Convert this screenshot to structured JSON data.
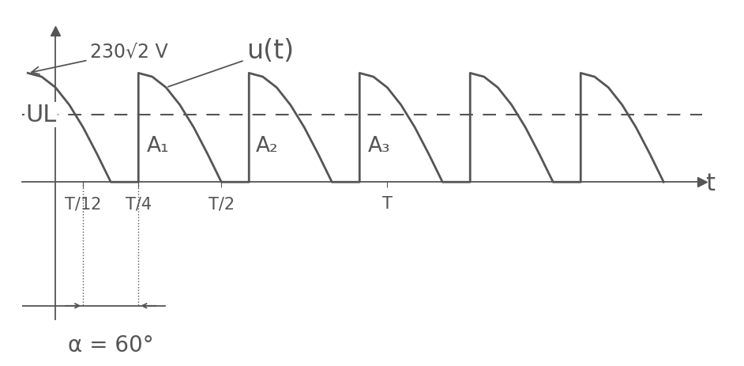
{
  "chart_data": {
    "type": "line",
    "x": [
      -0.0833,
      -0.0417,
      0,
      0.0417,
      0.0833,
      0.125,
      0.1667,
      0.25,
      0.25,
      0.2917,
      0.3333,
      0.375,
      0.4167,
      0.4583,
      0.5,
      0.5833,
      0.5833,
      0.625,
      0.6667,
      0.7083,
      0.75,
      0.7917,
      0.8333,
      0.9167,
      0.9167,
      0.9583,
      1.0,
      1.0417,
      1.0833,
      1.125,
      1.1667,
      1.25,
      1.25,
      1.2917,
      1.3333,
      1.375,
      1.4167,
      1.4583,
      1.5,
      1.5833,
      1.5833,
      1.625,
      1.6667,
      1.7083,
      1.75,
      1.7917,
      1.8333
    ],
    "values": [
      325,
      314,
      282,
      230,
      163,
      84,
      0,
      0,
      325,
      314,
      282,
      230,
      163,
      84,
      0,
      0,
      325,
      314,
      282,
      230,
      163,
      84,
      0,
      0,
      325,
      314,
      282,
      230,
      163,
      84,
      0,
      0,
      325,
      314,
      282,
      230,
      163,
      84,
      0,
      0,
      325,
      314,
      282,
      230,
      163,
      84,
      0
    ],
    "color": "#555555",
    "line_style": "solid",
    "curve_label": "u(t)",
    "peak_label": "230√2 V",
    "x_label": "t",
    "mean_level": {
      "label": "UL",
      "value": 200
    },
    "area_labels": [
      "A₁",
      "A₂",
      "A₃"
    ],
    "angle": {
      "label": "α = 60°",
      "from": 0.0833,
      "to": 0.25
    },
    "xlim": [
      -0.1,
      1.95
    ],
    "ylim": [
      -410,
      450
    ],
    "xticks": [
      {
        "value": 0.0833,
        "label": "T/12"
      },
      {
        "value": 0.25,
        "label": "T/4"
      },
      {
        "value": 0.5,
        "label": "T/2"
      },
      {
        "value": 1,
        "label": "T"
      }
    ],
    "yticks": [],
    "tick_labels": "x",
    "grid": false
  }
}
